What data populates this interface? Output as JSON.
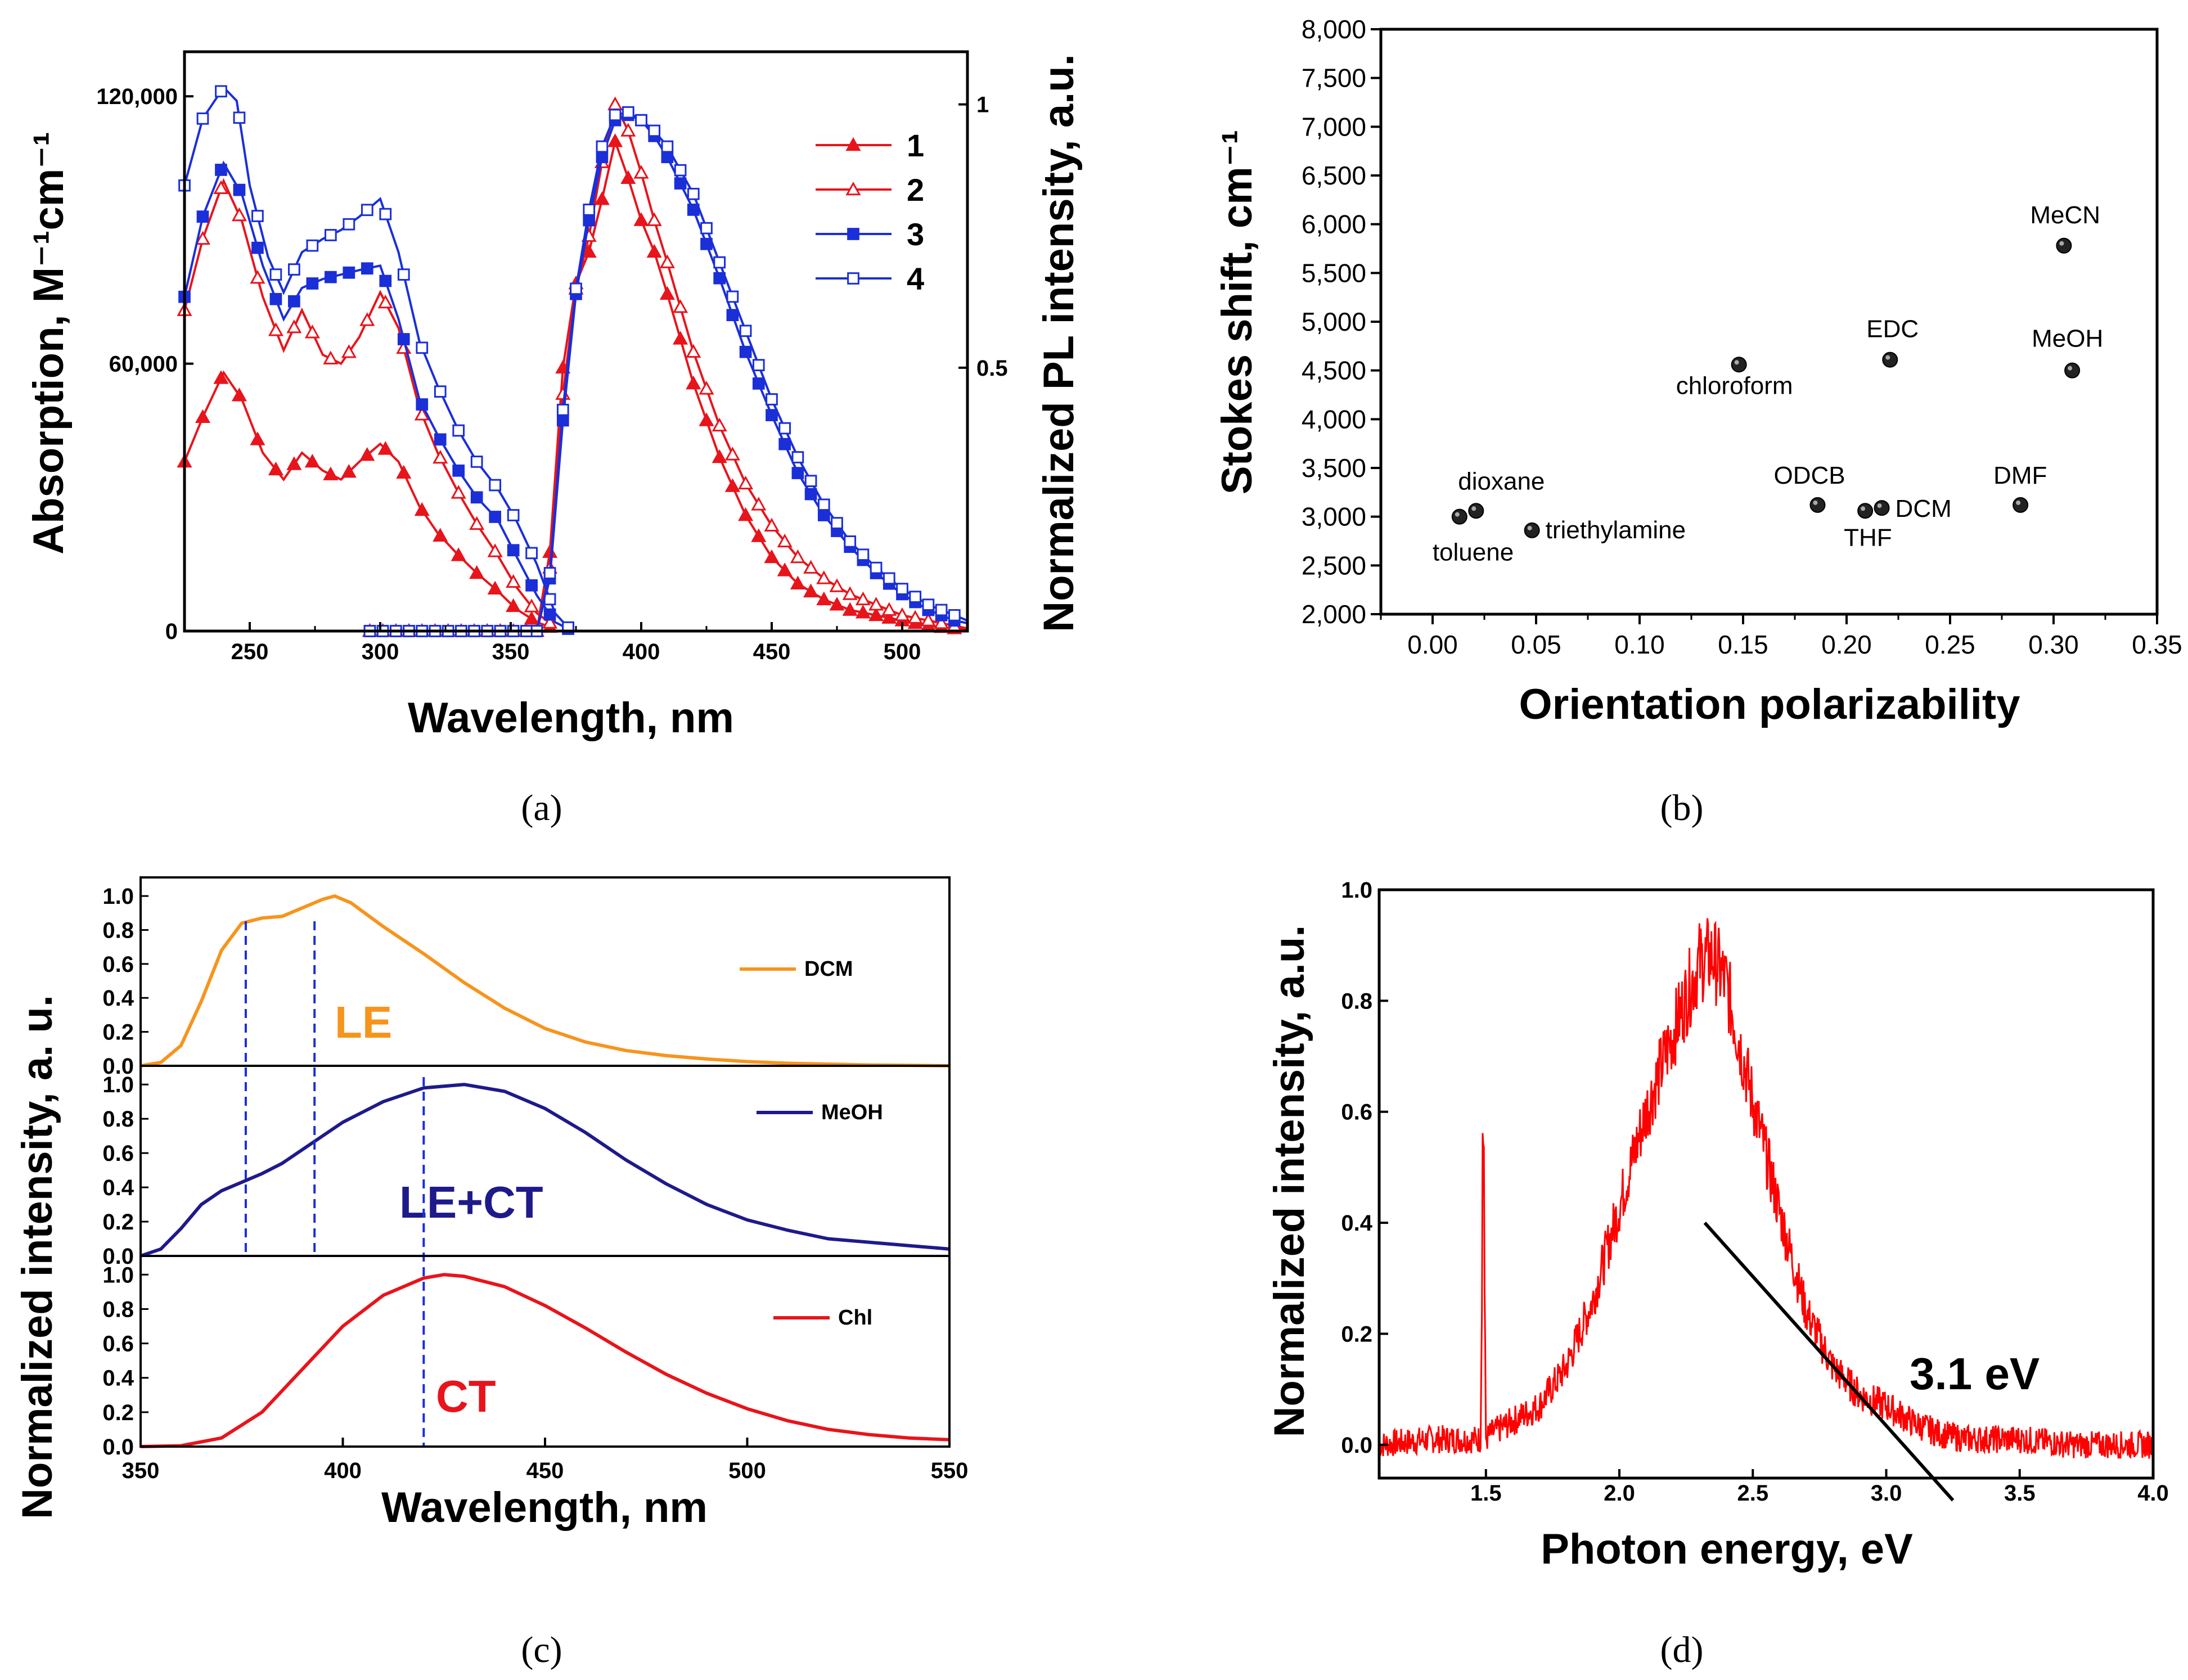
{
  "chart_data": [
    {
      "panel": "a",
      "type": "line",
      "caption": "(a)",
      "xlabel": "Wavelength, nm",
      "ylabel_left": "Absorption, M⁻¹cm⁻¹",
      "ylabel_right": "Normalized  PL intensity, a.u.",
      "xlim": [
        225,
        525
      ],
      "ylim_left": [
        0,
        130000
      ],
      "ylim_right": [
        0,
        1.1
      ],
      "x_ticks": [
        "250",
        "300",
        "350",
        "400",
        "450",
        "500"
      ],
      "y_ticks_left": [
        "0",
        "60,000",
        "120,000"
      ],
      "y_ticks_right": [
        "0.5",
        "1"
      ],
      "legend": [
        "1",
        "2",
        "3",
        "4"
      ],
      "series": [
        {
          "name": "1",
          "color": "#e8141b",
          "marker": "triangle-filled",
          "absorption": {
            "x": [
              225,
              232,
              240,
              247,
              255,
              263,
              270,
              278,
              285,
              292,
              300,
              307,
              315,
              322,
              330,
              337,
              345,
              352,
              360,
              367
            ],
            "y": [
              38000,
              48000,
              58000,
              52000,
              40000,
              34000,
              40000,
              36000,
              34000,
              38000,
              42000,
              38000,
              28000,
              22000,
              17000,
              13000,
              9000,
              5000,
              2000,
              500
            ]
          },
          "pl": {
            "x": [
              360,
              365,
              370,
              375,
              380,
              385,
              390,
              395,
              400,
              405,
              410,
              420,
              430,
              440,
              450,
              460,
              470,
              480,
              490,
              500,
              510,
              520,
              525
            ],
            "y": [
              0.0,
              0.15,
              0.5,
              0.66,
              0.72,
              0.82,
              0.93,
              0.86,
              0.78,
              0.72,
              0.64,
              0.47,
              0.33,
              0.22,
              0.14,
              0.09,
              0.06,
              0.04,
              0.03,
              0.02,
              0.01,
              0.005,
              0.003
            ]
          }
        },
        {
          "name": "2",
          "color": "#e8141b",
          "marker": "triangle-open",
          "absorption": {
            "x": [
              225,
              232,
              240,
              247,
              255,
              263,
              270,
              278,
              285,
              292,
              300,
              307,
              315,
              322,
              330,
              337,
              345,
              352,
              360,
              367
            ],
            "y": [
              72000,
              88000,
              101000,
              92000,
              75000,
              63000,
              72000,
              62000,
              60000,
              66000,
              76000,
              68000,
              50000,
              40000,
              31000,
              24000,
              17000,
              10000,
              4000,
              1000
            ]
          },
          "pl": {
            "x": [
              360,
              365,
              370,
              375,
              380,
              385,
              390,
              395,
              400,
              405,
              410,
              420,
              430,
              440,
              450,
              460,
              470,
              480,
              490,
              500,
              510,
              520,
              525
            ],
            "y": [
              0.0,
              0.12,
              0.45,
              0.65,
              0.75,
              0.89,
              1.0,
              0.95,
              0.87,
              0.78,
              0.7,
              0.53,
              0.39,
              0.28,
              0.2,
              0.14,
              0.1,
              0.07,
              0.05,
              0.03,
              0.02,
              0.01,
              0.005
            ]
          }
        },
        {
          "name": "3",
          "color": "#1a2fd8",
          "marker": "square-filled",
          "absorption": {
            "x": [
              225,
              232,
              240,
              247,
              255,
              263,
              270,
              278,
              285,
              292,
              300,
              307,
              315,
              322,
              330,
              337,
              345,
              352,
              360,
              367,
              372
            ],
            "y": [
              75000,
              93000,
              105000,
              98000,
              82000,
              70000,
              77000,
              79000,
              80000,
              81000,
              82000,
              70000,
              52000,
              44000,
              36000,
              30000,
              25000,
              17000,
              8000,
              2000,
              500
            ]
          },
          "pl": {
            "x": [
              360,
              365,
              370,
              375,
              380,
              385,
              390,
              395,
              400,
              405,
              410,
              420,
              430,
              440,
              450,
              460,
              470,
              480,
              490,
              500,
              510,
              520,
              525
            ],
            "y": [
              0.0,
              0.1,
              0.4,
              0.64,
              0.78,
              0.9,
              0.97,
              0.98,
              0.97,
              0.94,
              0.9,
              0.8,
              0.67,
              0.53,
              0.41,
              0.3,
              0.22,
              0.16,
              0.11,
              0.07,
              0.04,
              0.02,
              0.015
            ]
          }
        },
        {
          "name": "4",
          "color": "#1a2fd8",
          "marker": "square-open",
          "absorption": {
            "x": [
              225,
              232,
              240,
              245,
              250,
              257,
              263,
              270,
              278,
              285,
              292,
              300,
              307,
              315,
              322,
              330,
              337,
              345,
              352,
              360,
              367,
              372
            ],
            "y": [
              100000,
              115000,
              122000,
              119000,
              100000,
              84000,
              76000,
              85000,
              88000,
              90000,
              93000,
              97000,
              85000,
              65000,
              55000,
              45000,
              38000,
              32000,
              25000,
              15000,
              4000,
              800
            ]
          },
          "pl": {
            "x": [
              360,
              365,
              370,
              375,
              380,
              385,
              390,
              395,
              400,
              405,
              410,
              420,
              430,
              440,
              450,
              460,
              470,
              480,
              490,
              500,
              510,
              520,
              525
            ],
            "y": [
              0.0,
              0.11,
              0.42,
              0.65,
              0.8,
              0.92,
              0.98,
              0.985,
              0.97,
              0.95,
              0.92,
              0.83,
              0.7,
              0.57,
              0.44,
              0.33,
              0.24,
              0.17,
              0.12,
              0.08,
              0.05,
              0.03,
              0.02
            ]
          }
        }
      ]
    },
    {
      "panel": "b",
      "type": "scatter",
      "caption": "(b)",
      "xlabel": "Orientation polarizability",
      "ylabel": "Stokes shift, cm⁻¹",
      "xlim": [
        -0.025,
        0.35
      ],
      "ylim": [
        2000,
        8000
      ],
      "x_ticks": [
        "0.00",
        "0.05",
        "0.10",
        "0.15",
        "0.20",
        "0.25",
        "0.30",
        "0.35"
      ],
      "y_ticks": [
        "2,000",
        "2,500",
        "3,000",
        "3,500",
        "4,000",
        "4,500",
        "5,000",
        "5,500",
        "6,000",
        "6,500",
        "7,000",
        "7,500",
        "8,000"
      ],
      "points": [
        {
          "label": "toluene",
          "x": 0.013,
          "y": 3000
        },
        {
          "label": "dioxane",
          "x": 0.021,
          "y": 3060
        },
        {
          "label": "triethylamine",
          "x": 0.048,
          "y": 2860
        },
        {
          "label": "chloroform",
          "x": 0.148,
          "y": 4560
        },
        {
          "label": "ODCB",
          "x": 0.186,
          "y": 3120
        },
        {
          "label": "THF",
          "x": 0.209,
          "y": 3060
        },
        {
          "label": "DCM",
          "x": 0.217,
          "y": 3090
        },
        {
          "label": "EDC",
          "x": 0.221,
          "y": 4610
        },
        {
          "label": "DMF",
          "x": 0.284,
          "y": 3120
        },
        {
          "label": "MeCN",
          "x": 0.305,
          "y": 5780
        },
        {
          "label": "MeOH",
          "x": 0.309,
          "y": 4500
        }
      ]
    },
    {
      "panel": "c",
      "type": "line",
      "caption": "(c)",
      "xlabel": "Wavelength, nm",
      "ylabel": "Normalized intensity, a. u.",
      "xlim": [
        350,
        550
      ],
      "ylim": [
        0,
        1.1
      ],
      "x_ticks": [
        "350",
        "400",
        "450",
        "500",
        "550"
      ],
      "y_ticks": [
        "0.0",
        "0.2",
        "0.4",
        "0.6",
        "0.8",
        "1.0"
      ],
      "vlines": [
        376,
        393,
        420
      ],
      "series": [
        {
          "name": "DCM",
          "annotation": "LE",
          "color": "#f7941d",
          "x": [
            350,
            355,
            360,
            365,
            370,
            375,
            380,
            385,
            390,
            395,
            398,
            402,
            410,
            420,
            430,
            440,
            450,
            460,
            470,
            480,
            490,
            500,
            510,
            520,
            530,
            540,
            550
          ],
          "y": [
            0.0,
            0.02,
            0.12,
            0.38,
            0.68,
            0.84,
            0.87,
            0.88,
            0.93,
            0.98,
            1.0,
            0.96,
            0.82,
            0.66,
            0.49,
            0.34,
            0.22,
            0.14,
            0.09,
            0.06,
            0.04,
            0.025,
            0.015,
            0.01,
            0.005,
            0.003,
            0.0
          ]
        },
        {
          "name": "MeOH",
          "annotation": "LE+CT",
          "color": "#1f1a8a",
          "x": [
            350,
            355,
            360,
            365,
            370,
            375,
            380,
            385,
            390,
            395,
            400,
            410,
            420,
            430,
            440,
            450,
            460,
            470,
            480,
            490,
            500,
            510,
            520,
            530,
            540,
            550
          ],
          "y": [
            0.0,
            0.04,
            0.16,
            0.3,
            0.38,
            0.43,
            0.48,
            0.54,
            0.62,
            0.7,
            0.78,
            0.9,
            0.98,
            1.0,
            0.96,
            0.86,
            0.72,
            0.56,
            0.42,
            0.3,
            0.21,
            0.15,
            0.1,
            0.08,
            0.06,
            0.04
          ]
        },
        {
          "name": "Chl",
          "annotation": "CT",
          "color": "#e8141b",
          "x": [
            350,
            360,
            370,
            380,
            390,
            400,
            410,
            420,
            425,
            430,
            440,
            450,
            460,
            470,
            480,
            490,
            500,
            510,
            520,
            530,
            540,
            550
          ],
          "y": [
            0.0,
            0.005,
            0.05,
            0.2,
            0.45,
            0.7,
            0.88,
            0.98,
            1.0,
            0.99,
            0.93,
            0.82,
            0.69,
            0.55,
            0.42,
            0.31,
            0.22,
            0.15,
            0.1,
            0.07,
            0.05,
            0.04
          ]
        }
      ]
    },
    {
      "panel": "d",
      "type": "line",
      "caption": "(d)",
      "xlabel": "Photon energy, eV",
      "ylabel": "Normalized intensity, a.u.",
      "xlim": [
        1.1,
        4.0
      ],
      "ylim": [
        -0.06,
        1.0
      ],
      "x_ticks": [
        "1.5",
        "2.0",
        "2.5",
        "3.0",
        "3.5",
        "4.0"
      ],
      "y_ticks": [
        "0.0",
        "0.2",
        "0.4",
        "0.6",
        "0.8",
        "1.0"
      ],
      "annotation": "3.1 eV",
      "fit_line": {
        "x": [
          2.32,
          3.25
        ],
        "y": [
          0.4,
          -0.1
        ]
      },
      "series": [
        {
          "name": "spectrum",
          "color": "#ff0000",
          "x": [
            1.1,
            1.3,
            1.48,
            1.49,
            1.5,
            1.52,
            1.7,
            1.8,
            1.9,
            2.0,
            2.1,
            2.2,
            2.3,
            2.35,
            2.4,
            2.5,
            2.6,
            2.7,
            2.8,
            2.9,
            3.0,
            3.1,
            3.2,
            3.3,
            3.5,
            3.7,
            4.0
          ],
          "y": [
            0.0,
            0.01,
            0.01,
            0.55,
            0.01,
            0.02,
            0.07,
            0.14,
            0.26,
            0.43,
            0.6,
            0.74,
            0.87,
            0.88,
            0.83,
            0.62,
            0.42,
            0.24,
            0.14,
            0.09,
            0.07,
            0.04,
            0.02,
            0.01,
            0.01,
            0.0,
            0.0
          ]
        }
      ]
    }
  ]
}
